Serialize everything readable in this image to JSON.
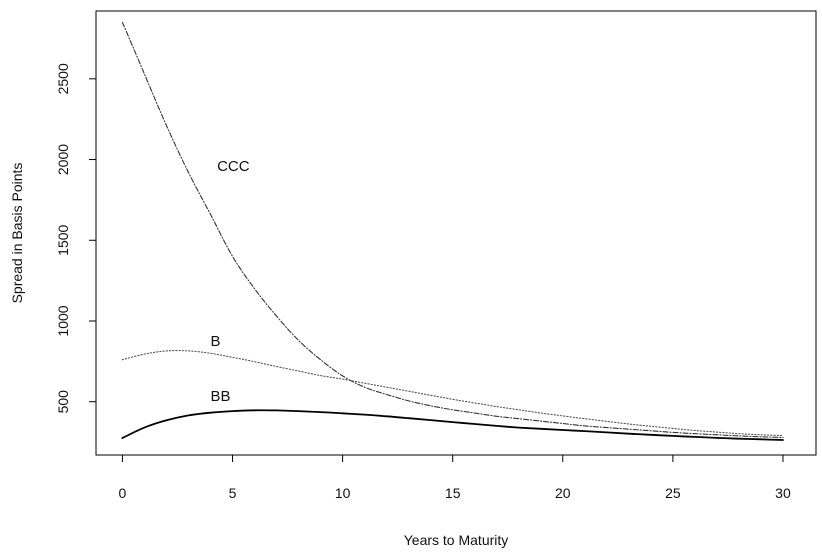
{
  "chart_data": {
    "type": "line",
    "title": "",
    "xlabel": "Years to Maturity",
    "ylabel": "Spread in Basis Points",
    "xlim": [
      -1.2,
      31.5
    ],
    "ylim": [
      170,
      2920
    ],
    "xticks": [
      0,
      5,
      10,
      15,
      20,
      25,
      30
    ],
    "yticks": [
      500,
      1000,
      1500,
      2000,
      2500
    ],
    "grid": false,
    "legend": "none",
    "series": [
      {
        "name": "CCC",
        "label_pos": [
          4.3,
          1930
        ],
        "color": "#333333",
        "dash": "5,2,1,2",
        "x": [
          0,
          1,
          2,
          3,
          4,
          5,
          6,
          7,
          8,
          9,
          10,
          11,
          12,
          13,
          14,
          15,
          16,
          17,
          18,
          19,
          20,
          21,
          22,
          23,
          24,
          25,
          26,
          27,
          28,
          29,
          30
        ],
        "y": [
          2850,
          2530,
          2210,
          1920,
          1660,
          1400,
          1200,
          1030,
          880,
          760,
          660,
          590,
          545,
          505,
          475,
          450,
          430,
          410,
          395,
          380,
          365,
          350,
          340,
          330,
          320,
          310,
          302,
          295,
          288,
          283,
          278
        ]
      },
      {
        "name": "B",
        "label_pos": [
          4.0,
          845
        ],
        "color": "#555555",
        "dash": "1.2,2",
        "x": [
          0,
          1,
          2,
          3,
          4,
          5,
          6,
          7,
          8,
          9,
          10,
          11,
          12,
          13,
          14,
          15,
          16,
          17,
          18,
          19,
          20,
          21,
          22,
          23,
          24,
          25,
          26,
          27,
          28,
          29,
          30
        ],
        "y": [
          760,
          795,
          815,
          815,
          800,
          775,
          748,
          718,
          690,
          662,
          640,
          615,
          590,
          565,
          540,
          515,
          492,
          470,
          450,
          430,
          412,
          395,
          378,
          362,
          348,
          335,
          322,
          312,
          302,
          295,
          290
        ]
      },
      {
        "name": "BB",
        "label_pos": [
          4.0,
          503
        ],
        "color": "#000000",
        "dash": "",
        "x": [
          0,
          1,
          2,
          3,
          4,
          5,
          6,
          7,
          8,
          9,
          10,
          11,
          12,
          13,
          14,
          15,
          16,
          17,
          18,
          19,
          20,
          21,
          22,
          23,
          24,
          25,
          26,
          27,
          28,
          29,
          30
        ],
        "y": [
          275,
          340,
          385,
          415,
          432,
          442,
          447,
          446,
          442,
          436,
          428,
          420,
          410,
          398,
          386,
          374,
          362,
          350,
          340,
          332,
          325,
          318,
          310,
          302,
          295,
          288,
          282,
          276,
          271,
          267,
          263
        ]
      }
    ]
  }
}
